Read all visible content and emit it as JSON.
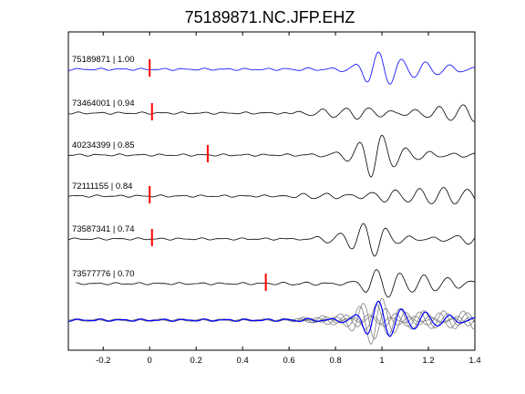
{
  "chart_data": {
    "type": "line",
    "title": "75189871.NC.JFP.EHZ",
    "xlabel": "",
    "ylabel": "",
    "xlim": [
      -0.35,
      1.4
    ],
    "xticks": [
      -0.2,
      0,
      0.2,
      0.4,
      0.6,
      0.8,
      1,
      1.2,
      1.4
    ],
    "xtick_labels": [
      "-0.2",
      "0",
      "0.2",
      "0.4",
      "0.6",
      "0.8",
      "1",
      "1.2",
      "1.4"
    ],
    "grid": false,
    "legend": "none",
    "traces": [
      {
        "label": "75189871 | 1.00",
        "pick_time": 0.0,
        "color": "#0000ff",
        "pick_color": "#ff0000"
      },
      {
        "label": "73464001 | 0.94",
        "pick_time": 0.01,
        "color": "#000000",
        "pick_color": "#ff0000"
      },
      {
        "label": "40234399 | 0.85",
        "pick_time": 0.25,
        "color": "#000000",
        "pick_color": "#ff0000"
      },
      {
        "label": "72111155 | 0.84",
        "pick_time": 0.0,
        "color": "#000000",
        "pick_color": "#ff0000"
      },
      {
        "label": "73587341 | 0.74",
        "pick_time": 0.01,
        "color": "#000000",
        "pick_color": "#ff0000"
      },
      {
        "label": "73577776 | 0.70",
        "pick_time": 0.5,
        "color": "#000000",
        "pick_color": "#ff0000"
      }
    ],
    "stack": {
      "overlay_color": "#808080",
      "reference_color": "#0000ff"
    }
  }
}
